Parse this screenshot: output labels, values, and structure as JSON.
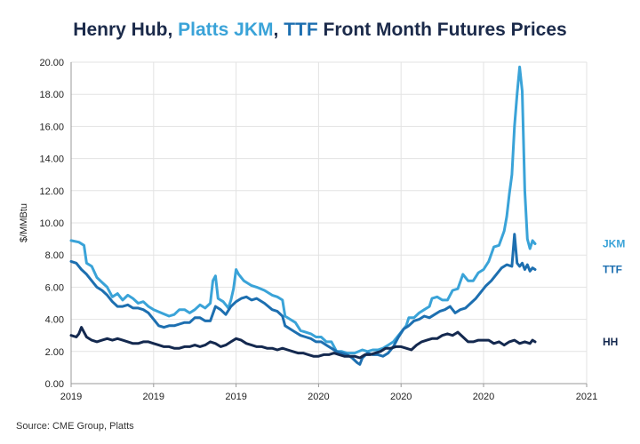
{
  "title": {
    "part1": "Henry Hub, ",
    "part2": "Platts JKM",
    "part3": ", ",
    "part4": "TTF",
    "part5": " Front Month Futures Prices"
  },
  "source": "Source: CME Group, Platts",
  "chart_data": {
    "type": "line",
    "ylabel": "$/MMBtu",
    "ylim": [
      0,
      20
    ],
    "yticks": [
      "0.00",
      "2.00",
      "4.00",
      "6.00",
      "8.00",
      "10.00",
      "12.00",
      "14.00",
      "16.00",
      "18.00",
      "20.00"
    ],
    "xlim": [
      0,
      2
    ],
    "xticks": [
      {
        "x": 0.0,
        "label": "2019"
      },
      {
        "x": 0.32,
        "label": "2019"
      },
      {
        "x": 0.64,
        "label": "2019"
      },
      {
        "x": 0.96,
        "label": "2020"
      },
      {
        "x": 1.28,
        "label": "2020"
      },
      {
        "x": 1.6,
        "label": "2020"
      },
      {
        "x": 2.0,
        "label": "2021"
      }
    ],
    "grid": true,
    "series": [
      {
        "name": "JKM",
        "color": "#3aa3d8",
        "points": [
          [
            0.0,
            8.9
          ],
          [
            0.03,
            8.8
          ],
          [
            0.05,
            8.6
          ],
          [
            0.06,
            7.5
          ],
          [
            0.08,
            7.3
          ],
          [
            0.1,
            6.6
          ],
          [
            0.12,
            6.3
          ],
          [
            0.14,
            6.0
          ],
          [
            0.16,
            5.4
          ],
          [
            0.18,
            5.6
          ],
          [
            0.2,
            5.2
          ],
          [
            0.22,
            5.5
          ],
          [
            0.24,
            5.3
          ],
          [
            0.26,
            5.0
          ],
          [
            0.28,
            5.1
          ],
          [
            0.3,
            4.8
          ],
          [
            0.32,
            4.6
          ],
          [
            0.35,
            4.4
          ],
          [
            0.38,
            4.2
          ],
          [
            0.4,
            4.3
          ],
          [
            0.42,
            4.6
          ],
          [
            0.44,
            4.6
          ],
          [
            0.46,
            4.4
          ],
          [
            0.48,
            4.6
          ],
          [
            0.5,
            4.9
          ],
          [
            0.52,
            4.7
          ],
          [
            0.54,
            5.0
          ],
          [
            0.55,
            6.4
          ],
          [
            0.56,
            6.7
          ],
          [
            0.57,
            5.3
          ],
          [
            0.59,
            5.1
          ],
          [
            0.61,
            4.7
          ],
          [
            0.62,
            5.2
          ],
          [
            0.63,
            5.9
          ],
          [
            0.64,
            7.1
          ],
          [
            0.65,
            6.8
          ],
          [
            0.67,
            6.4
          ],
          [
            0.7,
            6.1
          ],
          [
            0.72,
            6.0
          ],
          [
            0.75,
            5.8
          ],
          [
            0.78,
            5.5
          ],
          [
            0.8,
            5.4
          ],
          [
            0.82,
            5.2
          ],
          [
            0.83,
            4.2
          ],
          [
            0.85,
            4.0
          ],
          [
            0.87,
            3.8
          ],
          [
            0.89,
            3.3
          ],
          [
            0.91,
            3.2
          ],
          [
            0.93,
            3.1
          ],
          [
            0.95,
            2.9
          ],
          [
            0.97,
            2.9
          ],
          [
            0.99,
            2.6
          ],
          [
            1.01,
            2.6
          ],
          [
            1.03,
            2.0
          ],
          [
            1.05,
            2.0
          ],
          [
            1.07,
            1.9
          ],
          [
            1.1,
            1.9
          ],
          [
            1.13,
            2.1
          ],
          [
            1.15,
            2.0
          ],
          [
            1.17,
            2.1
          ],
          [
            1.19,
            2.1
          ],
          [
            1.21,
            2.2
          ],
          [
            1.23,
            2.4
          ],
          [
            1.25,
            2.6
          ],
          [
            1.27,
            3.0
          ],
          [
            1.29,
            3.4
          ],
          [
            1.3,
            3.6
          ],
          [
            1.31,
            4.1
          ],
          [
            1.33,
            4.1
          ],
          [
            1.35,
            4.4
          ],
          [
            1.37,
            4.6
          ],
          [
            1.39,
            4.8
          ],
          [
            1.4,
            5.3
          ],
          [
            1.42,
            5.4
          ],
          [
            1.44,
            5.2
          ],
          [
            1.46,
            5.2
          ],
          [
            1.48,
            5.8
          ],
          [
            1.5,
            5.9
          ],
          [
            1.52,
            6.8
          ],
          [
            1.54,
            6.4
          ],
          [
            1.56,
            6.4
          ],
          [
            1.58,
            6.9
          ],
          [
            1.6,
            7.1
          ],
          [
            1.62,
            7.6
          ],
          [
            1.64,
            8.5
          ],
          [
            1.66,
            8.6
          ],
          [
            1.68,
            9.5
          ],
          [
            1.69,
            10.4
          ],
          [
            1.7,
            11.8
          ],
          [
            1.71,
            13.0
          ],
          [
            1.72,
            16.0
          ],
          [
            1.73,
            18.0
          ],
          [
            1.74,
            19.7
          ],
          [
            1.75,
            18.2
          ],
          [
            1.76,
            12.0
          ],
          [
            1.77,
            9.0
          ],
          [
            1.78,
            8.4
          ],
          [
            1.79,
            8.9
          ],
          [
            1.8,
            8.7
          ]
        ]
      },
      {
        "name": "TTF",
        "color": "#1d6fb0",
        "points": [
          [
            0.0,
            7.6
          ],
          [
            0.02,
            7.5
          ],
          [
            0.04,
            7.1
          ],
          [
            0.06,
            6.8
          ],
          [
            0.08,
            6.4
          ],
          [
            0.1,
            6.0
          ],
          [
            0.12,
            5.8
          ],
          [
            0.14,
            5.5
          ],
          [
            0.16,
            5.1
          ],
          [
            0.18,
            4.8
          ],
          [
            0.2,
            4.8
          ],
          [
            0.22,
            4.9
          ],
          [
            0.24,
            4.7
          ],
          [
            0.26,
            4.7
          ],
          [
            0.28,
            4.6
          ],
          [
            0.3,
            4.4
          ],
          [
            0.32,
            4.0
          ],
          [
            0.34,
            3.6
          ],
          [
            0.36,
            3.5
          ],
          [
            0.38,
            3.6
          ],
          [
            0.4,
            3.6
          ],
          [
            0.42,
            3.7
          ],
          [
            0.44,
            3.8
          ],
          [
            0.46,
            3.8
          ],
          [
            0.48,
            4.1
          ],
          [
            0.5,
            4.1
          ],
          [
            0.52,
            3.9
          ],
          [
            0.54,
            3.9
          ],
          [
            0.56,
            4.8
          ],
          [
            0.58,
            4.6
          ],
          [
            0.6,
            4.3
          ],
          [
            0.62,
            4.8
          ],
          [
            0.64,
            5.1
          ],
          [
            0.66,
            5.3
          ],
          [
            0.68,
            5.4
          ],
          [
            0.7,
            5.2
          ],
          [
            0.72,
            5.3
          ],
          [
            0.75,
            5.0
          ],
          [
            0.78,
            4.6
          ],
          [
            0.8,
            4.5
          ],
          [
            0.82,
            4.2
          ],
          [
            0.83,
            3.6
          ],
          [
            0.85,
            3.4
          ],
          [
            0.87,
            3.2
          ],
          [
            0.89,
            3.0
          ],
          [
            0.91,
            2.9
          ],
          [
            0.93,
            2.8
          ],
          [
            0.95,
            2.6
          ],
          [
            0.97,
            2.6
          ],
          [
            0.99,
            2.4
          ],
          [
            1.01,
            2.2
          ],
          [
            1.03,
            2.0
          ],
          [
            1.05,
            1.9
          ],
          [
            1.07,
            1.8
          ],
          [
            1.09,
            1.6
          ],
          [
            1.11,
            1.3
          ],
          [
            1.12,
            1.2
          ],
          [
            1.13,
            1.6
          ],
          [
            1.15,
            1.9
          ],
          [
            1.17,
            1.8
          ],
          [
            1.19,
            1.8
          ],
          [
            1.21,
            1.7
          ],
          [
            1.23,
            1.9
          ],
          [
            1.25,
            2.3
          ],
          [
            1.27,
            2.9
          ],
          [
            1.29,
            3.4
          ],
          [
            1.31,
            3.6
          ],
          [
            1.33,
            3.9
          ],
          [
            1.35,
            4.0
          ],
          [
            1.37,
            4.2
          ],
          [
            1.39,
            4.1
          ],
          [
            1.41,
            4.3
          ],
          [
            1.43,
            4.5
          ],
          [
            1.45,
            4.6
          ],
          [
            1.47,
            4.8
          ],
          [
            1.49,
            4.4
          ],
          [
            1.51,
            4.6
          ],
          [
            1.53,
            4.7
          ],
          [
            1.55,
            5.0
          ],
          [
            1.57,
            5.3
          ],
          [
            1.59,
            5.7
          ],
          [
            1.61,
            6.1
          ],
          [
            1.63,
            6.4
          ],
          [
            1.65,
            6.8
          ],
          [
            1.67,
            7.2
          ],
          [
            1.69,
            7.4
          ],
          [
            1.71,
            7.3
          ],
          [
            1.72,
            9.3
          ],
          [
            1.73,
            7.5
          ],
          [
            1.74,
            7.3
          ],
          [
            1.75,
            7.5
          ],
          [
            1.76,
            7.1
          ],
          [
            1.77,
            7.4
          ],
          [
            1.78,
            7.0
          ],
          [
            1.79,
            7.2
          ],
          [
            1.8,
            7.1
          ]
        ]
      },
      {
        "name": "HH",
        "color": "#14294f",
        "points": [
          [
            0.0,
            3.0
          ],
          [
            0.02,
            2.9
          ],
          [
            0.03,
            3.1
          ],
          [
            0.04,
            3.5
          ],
          [
            0.05,
            3.2
          ],
          [
            0.06,
            2.9
          ],
          [
            0.08,
            2.7
          ],
          [
            0.1,
            2.6
          ],
          [
            0.12,
            2.7
          ],
          [
            0.14,
            2.8
          ],
          [
            0.16,
            2.7
          ],
          [
            0.18,
            2.8
          ],
          [
            0.2,
            2.7
          ],
          [
            0.22,
            2.6
          ],
          [
            0.24,
            2.5
          ],
          [
            0.26,
            2.5
          ],
          [
            0.28,
            2.6
          ],
          [
            0.3,
            2.6
          ],
          [
            0.32,
            2.5
          ],
          [
            0.34,
            2.4
          ],
          [
            0.36,
            2.3
          ],
          [
            0.38,
            2.3
          ],
          [
            0.4,
            2.2
          ],
          [
            0.42,
            2.2
          ],
          [
            0.44,
            2.3
          ],
          [
            0.46,
            2.3
          ],
          [
            0.48,
            2.4
          ],
          [
            0.5,
            2.3
          ],
          [
            0.52,
            2.4
          ],
          [
            0.54,
            2.6
          ],
          [
            0.56,
            2.5
          ],
          [
            0.58,
            2.3
          ],
          [
            0.6,
            2.4
          ],
          [
            0.62,
            2.6
          ],
          [
            0.64,
            2.8
          ],
          [
            0.66,
            2.7
          ],
          [
            0.68,
            2.5
          ],
          [
            0.7,
            2.4
          ],
          [
            0.72,
            2.3
          ],
          [
            0.74,
            2.3
          ],
          [
            0.76,
            2.2
          ],
          [
            0.78,
            2.2
          ],
          [
            0.8,
            2.1
          ],
          [
            0.82,
            2.2
          ],
          [
            0.84,
            2.1
          ],
          [
            0.86,
            2.0
          ],
          [
            0.88,
            1.9
          ],
          [
            0.9,
            1.9
          ],
          [
            0.92,
            1.8
          ],
          [
            0.94,
            1.7
          ],
          [
            0.96,
            1.7
          ],
          [
            0.98,
            1.8
          ],
          [
            1.0,
            1.8
          ],
          [
            1.02,
            1.9
          ],
          [
            1.04,
            1.8
          ],
          [
            1.06,
            1.7
          ],
          [
            1.08,
            1.7
          ],
          [
            1.1,
            1.7
          ],
          [
            1.12,
            1.6
          ],
          [
            1.14,
            1.8
          ],
          [
            1.16,
            1.8
          ],
          [
            1.18,
            1.9
          ],
          [
            1.2,
            2.0
          ],
          [
            1.22,
            2.2
          ],
          [
            1.24,
            2.2
          ],
          [
            1.26,
            2.3
          ],
          [
            1.28,
            2.3
          ],
          [
            1.3,
            2.2
          ],
          [
            1.32,
            2.1
          ],
          [
            1.34,
            2.4
          ],
          [
            1.36,
            2.6
          ],
          [
            1.38,
            2.7
          ],
          [
            1.4,
            2.8
          ],
          [
            1.42,
            2.8
          ],
          [
            1.44,
            3.0
          ],
          [
            1.46,
            3.1
          ],
          [
            1.48,
            3.0
          ],
          [
            1.5,
            3.2
          ],
          [
            1.52,
            2.9
          ],
          [
            1.54,
            2.6
          ],
          [
            1.56,
            2.6
          ],
          [
            1.58,
            2.7
          ],
          [
            1.6,
            2.7
          ],
          [
            1.62,
            2.7
          ],
          [
            1.64,
            2.5
          ],
          [
            1.66,
            2.6
          ],
          [
            1.68,
            2.4
          ],
          [
            1.7,
            2.6
          ],
          [
            1.72,
            2.7
          ],
          [
            1.74,
            2.5
          ],
          [
            1.76,
            2.6
          ],
          [
            1.78,
            2.5
          ],
          [
            1.79,
            2.7
          ],
          [
            1.8,
            2.6
          ]
        ]
      }
    ]
  }
}
